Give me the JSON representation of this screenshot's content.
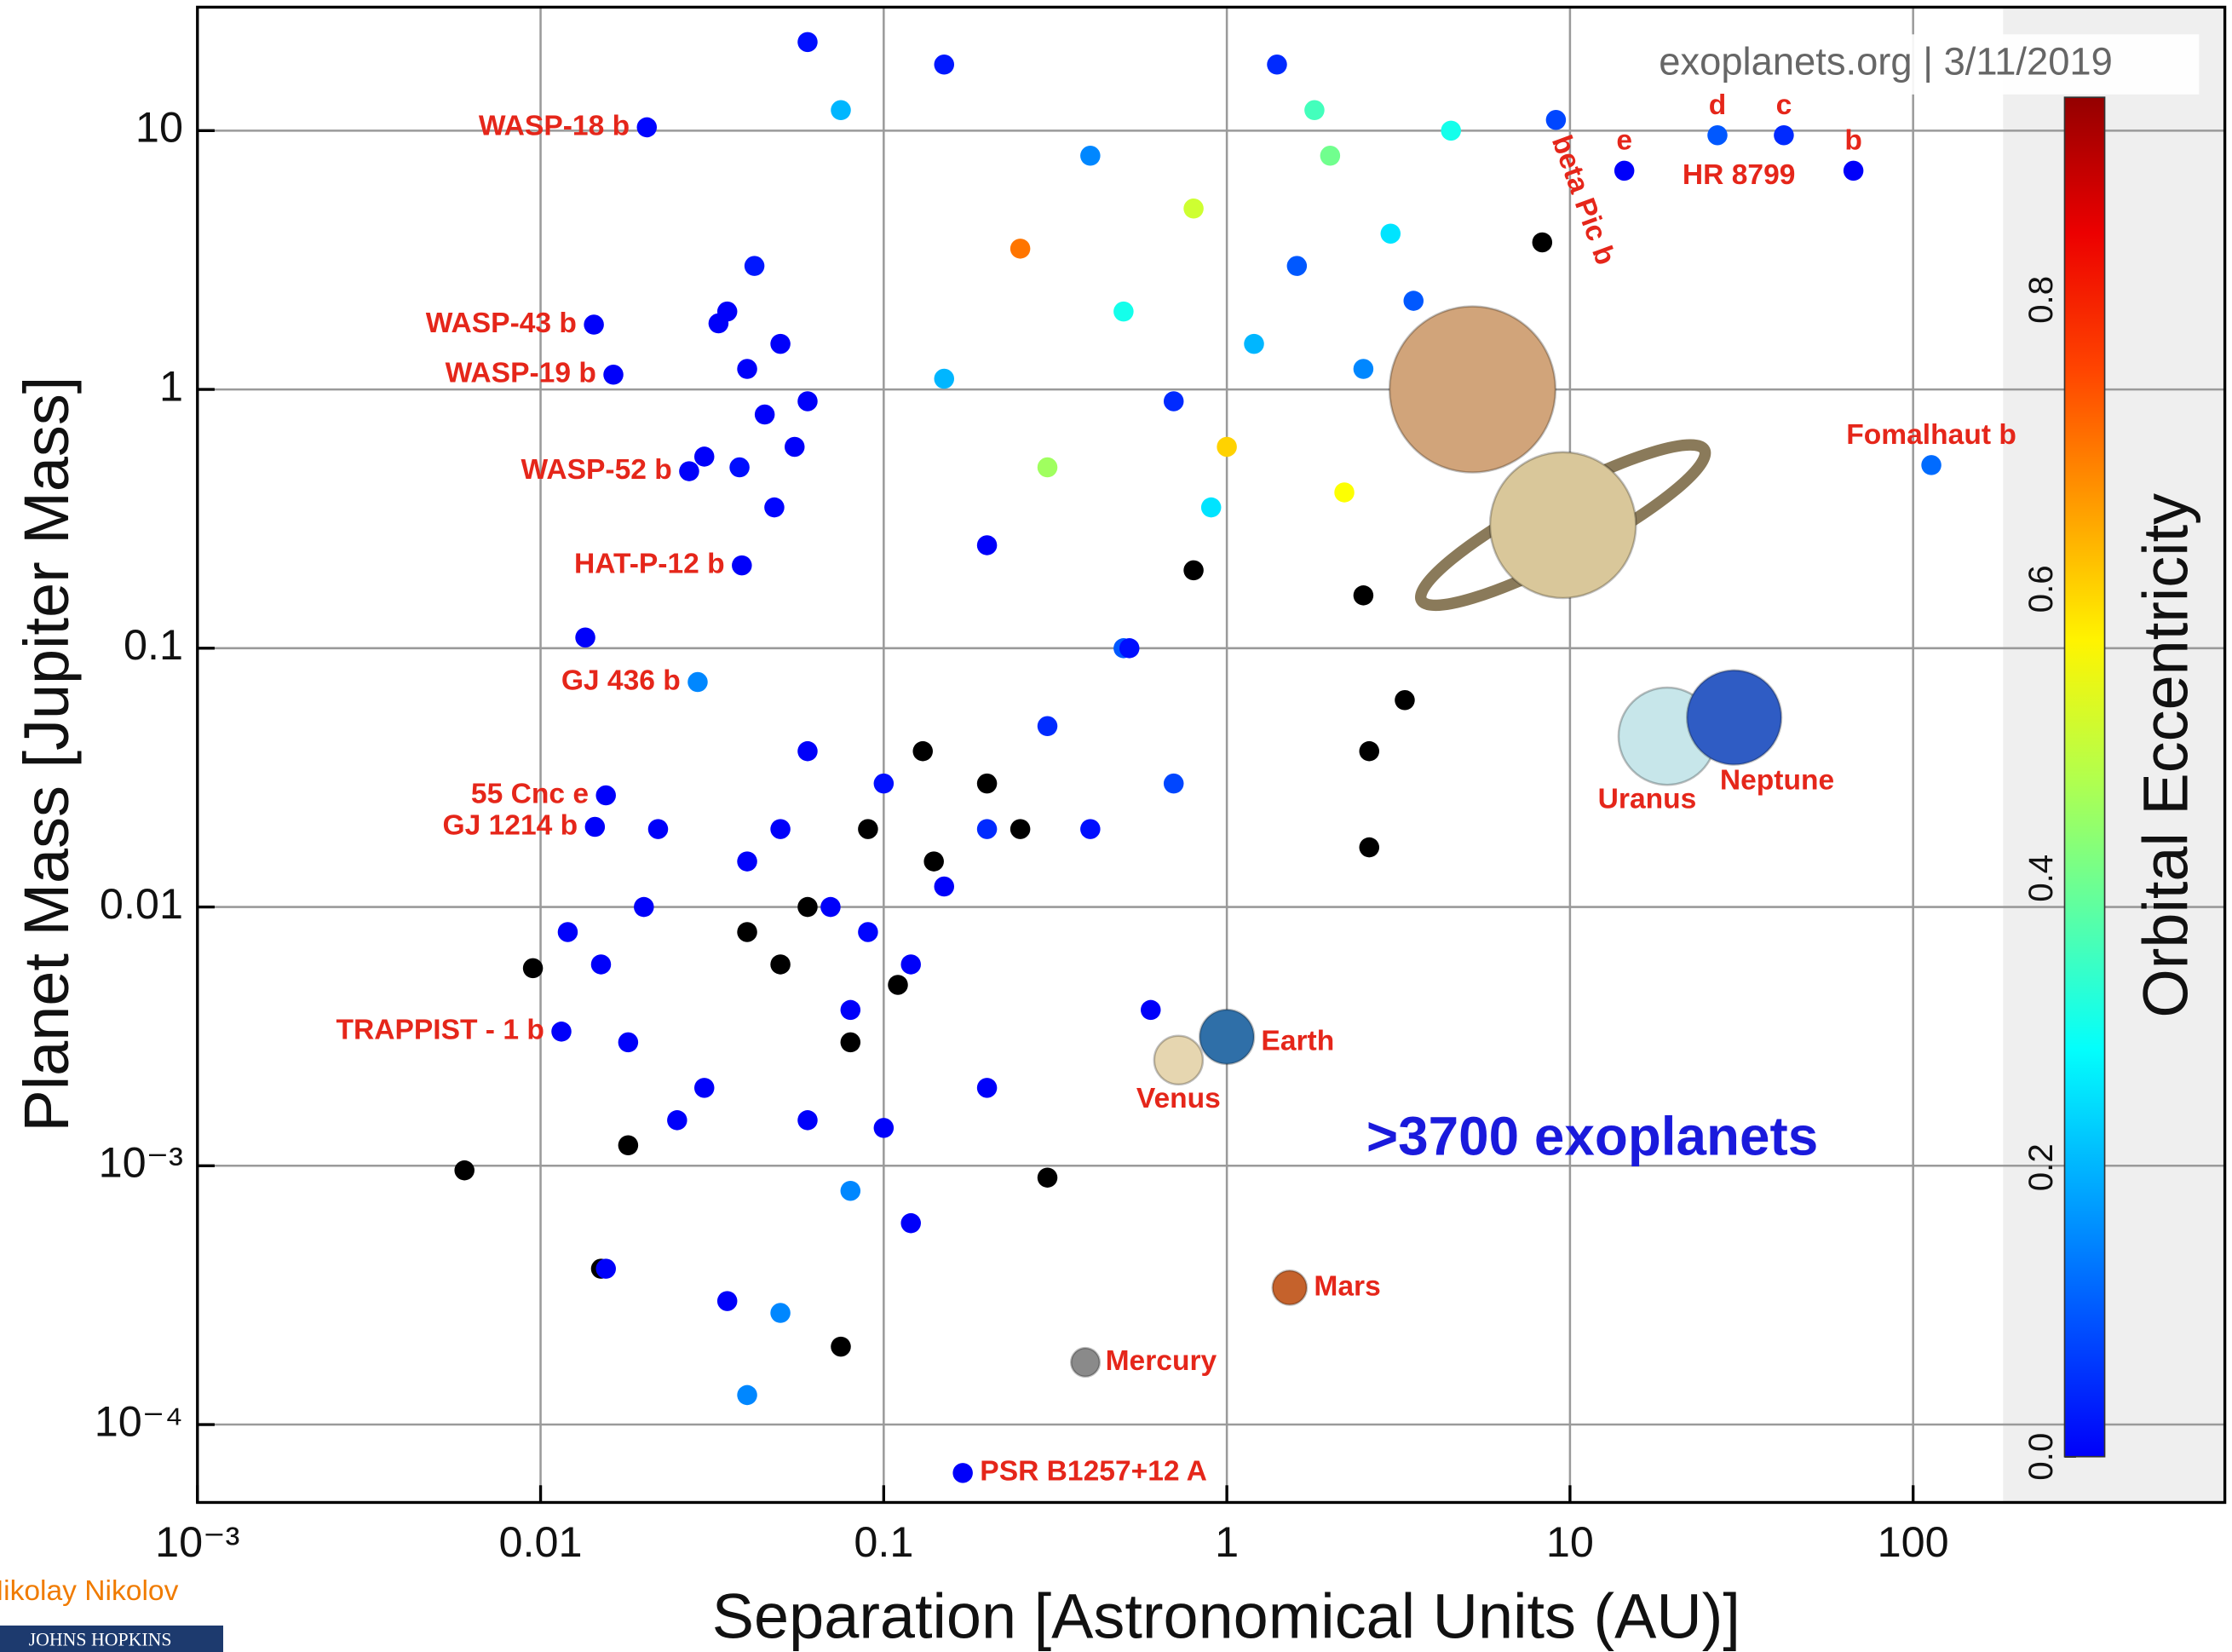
{
  "chart_data": {
    "type": "scatter",
    "xlabel": "Separation [Astronomical Units (AU)]",
    "ylabel": "Planet Mass [Jupiter Mass]",
    "xscale": "log",
    "yscale": "log",
    "grid": true,
    "xlim": [
      0.001,
      810
    ],
    "ylim": [
      5e-05,
      30
    ],
    "xticks": [
      {
        "value": 0.001,
        "label": "10⁻³"
      },
      0.01,
      0.1,
      1,
      10,
      100
    ],
    "yticks": [
      {
        "value": 0.0001,
        "label": "10⁻⁴"
      },
      {
        "value": 0.001,
        "label": "10⁻³"
      },
      0.01,
      0.1,
      1,
      10
    ],
    "source": "exoplanets.org  |  3/11/2019",
    "annotation": ">3700 exoplanets",
    "annotation_color": "#1a1adc",
    "null_color": "#000000",
    "colorbar": {
      "label": "Orbital Eccentricity",
      "lim": [
        0,
        0.94
      ],
      "ticks": [
        {
          "value": 0,
          "label": "0.0"
        },
        0.2,
        0.4,
        0.6,
        0.8
      ]
    },
    "points": {
      "x": [
        0.035,
        0.04,
        0.045,
        0.05,
        0.038,
        0.055,
        0.042,
        0.06,
        0.033,
        0.048,
        0.5,
        0.8,
        1.2,
        1.6,
        2.0,
        2.5,
        3.0,
        1.0,
        0.7,
        1.8,
        0.3,
        0.15,
        0.25,
        0.4,
        2.2,
        3.5,
        4.5,
        1.4,
        0.9,
        5.5,
        0.05,
        0.07,
        0.1,
        0.12,
        0.08,
        0.2,
        0.06,
        0.15,
        0.09,
        0.04,
        0.06,
        0.09,
        0.11,
        0.14,
        0.05,
        0.2,
        0.08,
        0.25,
        0.13,
        0.04,
        0.02,
        0.015,
        0.03,
        0.025,
        0.012,
        0.018,
        0.3,
        0.5,
        0.4,
        0.7,
        0.06,
        0.2,
        0.015,
        0.08,
        0.035,
        0.05,
        0.1,
        0.12,
        0.3,
        0.6,
        0.006,
        0.0095,
        0.018,
        0.075,
        2.6,
        3.3,
        2.6,
        8.3,
        2.5,
        0.8,
        0.06,
        0.15,
        0.0135,
        0.04,
        0.0155,
        0.075,
        0.52,
        0.2,
        0.03,
        0.022
      ],
      "y": [
        2.0,
        1.2,
        0.8,
        1.5,
        0.5,
        0.6,
        3.0,
        0.9,
        1.8,
        0.35,
        2.0,
        5.0,
        1.5,
        3.0,
        8.0,
        1.2,
        4.0,
        0.6,
        0.9,
        12,
        0.5,
        1.1,
        3.5,
        8.0,
        0.4,
        2.2,
        10,
        18,
        0.35,
        1.5,
        0.02,
        0.01,
        0.03,
        0.006,
        0.004,
        0.02,
        0.04,
        0.012,
        0.008,
        0.015,
        0.01,
        0.02,
        0.005,
        0.015,
        0.006,
        0.03,
        0.003,
        0.02,
        0.04,
        0.008,
        0.01,
        0.006,
        0.002,
        0.0015,
        0.008,
        0.003,
        0.05,
        0.1,
        0.02,
        0.03,
        0.0015,
        0.002,
        0.0004,
        0.0008,
        0.0003,
        0.00027,
        0.0014,
        0.0006,
        0.0009,
        0.004,
        0.00096,
        0.0058,
        0.0012,
        0.0002,
        0.04,
        0.063,
        0.017,
        3.7,
        0.16,
        0.2,
        22,
        18,
        0.11,
        0.00013,
        0.0004,
        12,
        0.1,
        0.25,
        0.55,
        0.02
      ],
      "e": [
        0,
        0,
        0,
        0,
        0.02,
        0,
        0.03,
        0,
        0,
        0.01,
        0.3,
        0.5,
        0.2,
        0.1,
        0.4,
        0.15,
        0.25,
        0.6,
        0.05,
        0.35,
        0.45,
        0.2,
        0.7,
        0.15,
        0.55,
        0.1,
        0.3,
        0.05,
        0.25,
        0.4,
        0,
        0,
        0.02,
        0,
        0,
        0.05,
        0,
        0,
        0.01,
        0,
        null,
        null,
        null,
        null,
        null,
        null,
        null,
        null,
        null,
        null,
        0,
        0,
        0,
        0,
        0,
        0,
        0.05,
        0.1,
        0.02,
        0.08,
        0,
        0,
        null,
        0.15,
        0,
        0.15,
        0,
        0,
        null,
        0,
        null,
        null,
        null,
        null,
        null,
        null,
        null,
        null,
        null,
        null,
        0.02,
        0.03,
        0,
        0.15,
        0,
        0.2,
        0.02,
        0,
        0,
        0
      ]
    },
    "labeled_planets": [
      {
        "name": "WASP-18 b",
        "x": 0.0204,
        "y": 10.3,
        "e": 0.01
      },
      {
        "name": "WASP-43 b",
        "x": 0.0143,
        "y": 1.78,
        "e": 0
      },
      {
        "name": "WASP-19 b",
        "x": 0.0163,
        "y": 1.14,
        "e": 0
      },
      {
        "name": "WASP-52 b",
        "x": 0.0271,
        "y": 0.483,
        "e": 0
      },
      {
        "name": "HAT-P-12 b",
        "x": 0.0386,
        "y": 0.209,
        "e": 0
      },
      {
        "name": "GJ 436 b",
        "x": 0.0287,
        "y": 0.074,
        "e": 0.15
      },
      {
        "name": "55 Cnc e",
        "x": 0.0155,
        "y": 0.027,
        "e": 0
      },
      {
        "name": "GJ 1214 b",
        "x": 0.0144,
        "y": 0.0204,
        "e": 0
      },
      {
        "name": "TRAPPIST - 1 b",
        "x": 0.0115,
        "y": 0.0033,
        "e": 0
      },
      {
        "name": "PSR B1257+12 A",
        "x": 0.17,
        "y": 6.5e-05,
        "e": 0
      },
      {
        "name": "beta Pic b",
        "x": 9.1,
        "y": 11,
        "e": 0.08
      },
      {
        "name": "e",
        "x": 14.4,
        "y": 7.0,
        "e": 0
      },
      {
        "name": "d",
        "x": 26.9,
        "y": 9.6,
        "e": 0.1
      },
      {
        "name": "c",
        "x": 42,
        "y": 9.6,
        "e": 0.05
      },
      {
        "name": "b",
        "x": 67,
        "y": 7.0,
        "e": 0
      },
      {
        "name": "Fomalhaut b",
        "x": 113,
        "y": 0.51,
        "e": 0.12
      }
    ],
    "group_label": "HR 8799",
    "solar_system": [
      {
        "name": "Mercury",
        "x": 0.387,
        "y": 0.000174
      },
      {
        "name": "Venus",
        "x": 0.723,
        "y": 0.00256
      },
      {
        "name": "Earth",
        "x": 1.0,
        "y": 0.00315
      },
      {
        "name": "Mars",
        "x": 1.524,
        "y": 0.000338
      },
      {
        "name": "Jupiter",
        "x": 5.2,
        "y": 1.0
      },
      {
        "name": "Saturn",
        "x": 9.54,
        "y": 0.299
      },
      {
        "name": "Uranus",
        "x": 19.2,
        "y": 0.0457
      },
      {
        "name": "Neptune",
        "x": 30.1,
        "y": 0.054
      }
    ],
    "credits": {
      "author": "Nikolay Nikolov",
      "institution": "JOHNS HOPKINS"
    }
  }
}
